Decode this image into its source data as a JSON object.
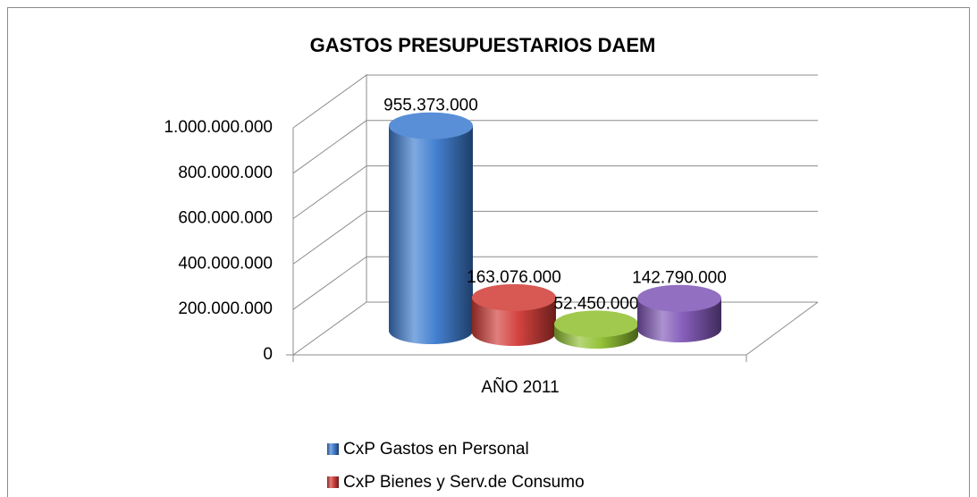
{
  "chart_data": {
    "type": "bar3d",
    "title": "GASTOS PRESUPUESTARIOS DAEM",
    "categories": [
      "AÑO 2011"
    ],
    "series": [
      {
        "name": "CxP Gastos en Personal",
        "color": "#3c7bd0",
        "values": [
          955373000
        ],
        "value_labels": [
          "955.373.000"
        ]
      },
      {
        "name": "CxP Bienes y Serv.de Consumo",
        "color": "#d13a36",
        "values": [
          163076000
        ],
        "value_labels": [
          "163.076.000"
        ]
      },
      {
        "color": "#8fc02f",
        "values": [
          52450000
        ],
        "value_labels": [
          "52.450.000"
        ]
      },
      {
        "color": "#7f55b6",
        "values": [
          142790000
        ],
        "value_labels": [
          "142.790.000"
        ]
      }
    ],
    "ylim": [
      0,
      1000000000
    ],
    "yticks": [
      0,
      {
        "value": 200000000,
        "label": "200.000.000"
      },
      {
        "value": 400000000,
        "label": "400.000.000"
      },
      {
        "value": 600000000,
        "label": "600.000.000"
      },
      {
        "value": 800000000,
        "label": "800.000.000"
      },
      {
        "value": 1000000000,
        "label": "1.000.000.000"
      }
    ],
    "grid": true
  }
}
